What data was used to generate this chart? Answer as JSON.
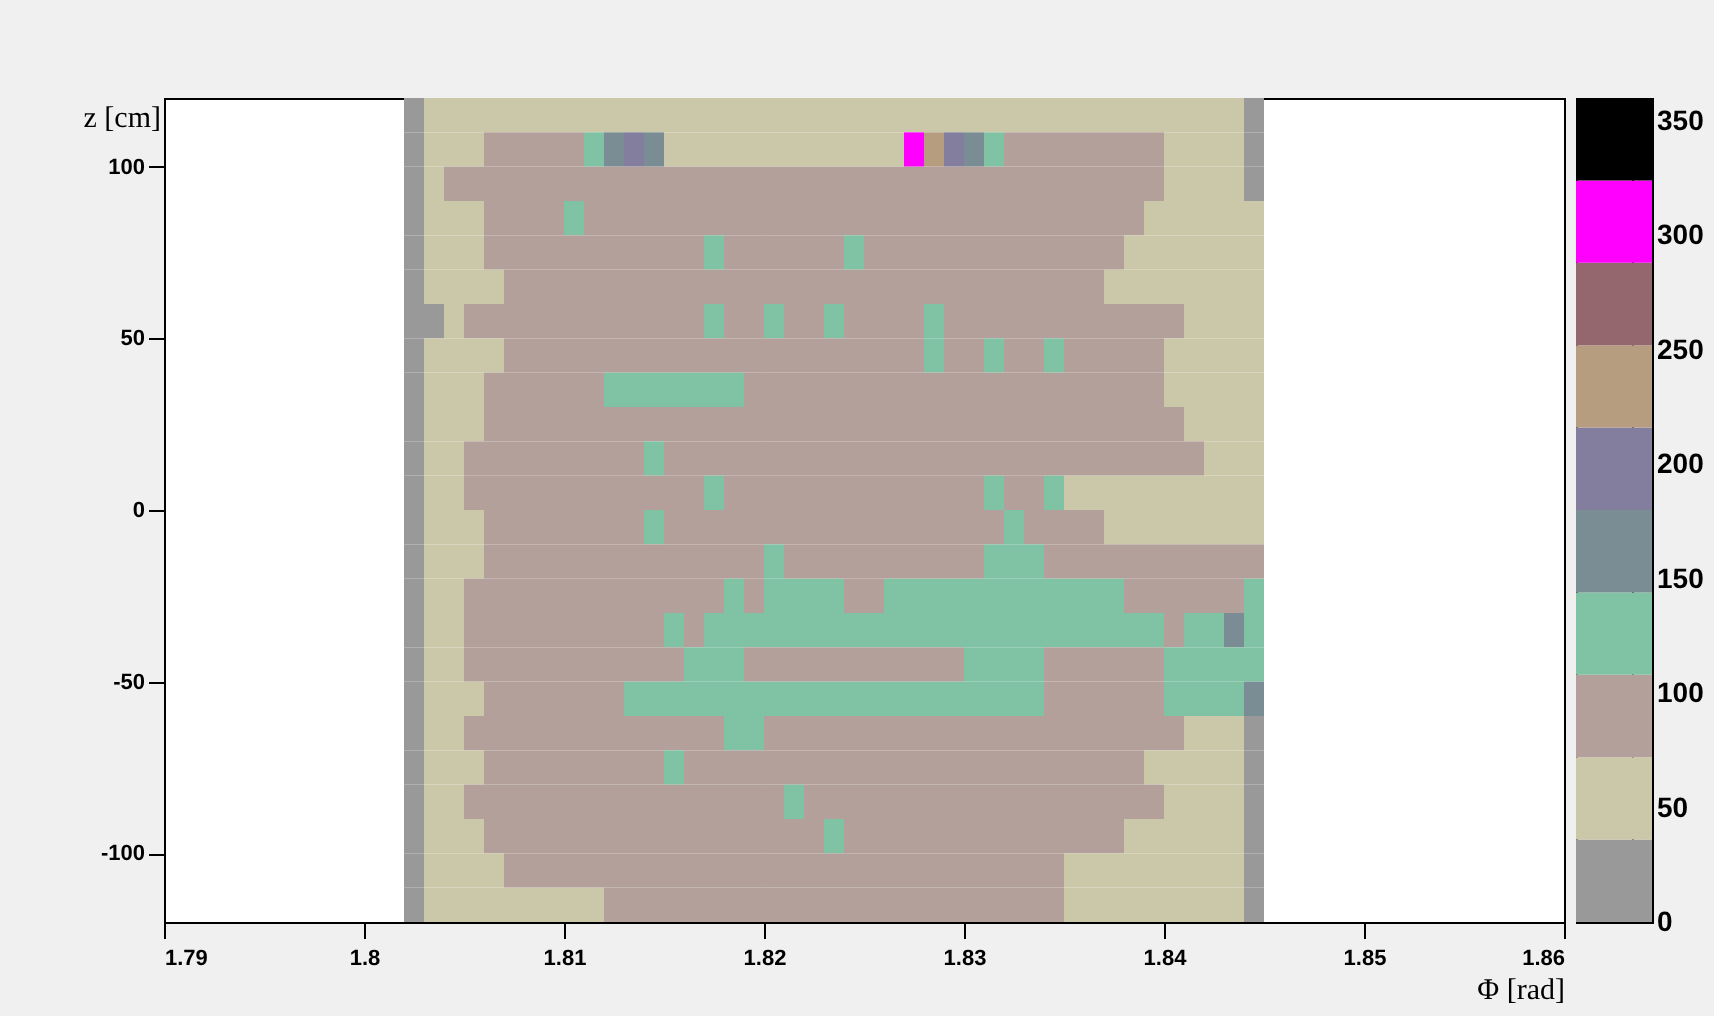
{
  "chart_data": {
    "type": "heatmap",
    "xlabel": "Φ [rad]",
    "ylabel": "z [cm]",
    "x": [
      1.8025,
      1.8035,
      1.8045,
      1.8055,
      1.8065,
      1.8075,
      1.8085,
      1.8095,
      1.8105,
      1.8115,
      1.8125,
      1.8135,
      1.8145,
      1.8155,
      1.8165,
      1.8175,
      1.8185,
      1.8195,
      1.8205,
      1.8215,
      1.8225,
      1.8235,
      1.8245,
      1.8255,
      1.8265,
      1.8275,
      1.8285,
      1.8295,
      1.8305,
      1.8315,
      1.8325,
      1.8335,
      1.8345,
      1.8355,
      1.8365,
      1.8375,
      1.8385,
      1.8395,
      1.8405,
      1.8415,
      1.8425,
      1.8435,
      1.8445
    ],
    "y": [
      115,
      105,
      95,
      85,
      75,
      65,
      55,
      45,
      35,
      25,
      15,
      5,
      -5,
      -15,
      -25,
      -35,
      -45,
      -55,
      -65,
      -75,
      -85,
      -95,
      -105,
      -115
    ],
    "cells": [
      [
        18,
        54,
        54,
        54,
        54,
        54,
        54,
        54,
        54,
        54,
        54,
        54,
        54,
        54,
        54,
        54,
        54,
        54,
        54,
        54,
        54,
        54,
        54,
        54,
        54,
        54,
        54,
        54,
        54,
        54,
        54,
        54,
        54,
        54,
        54,
        54,
        54,
        54,
        54,
        54,
        54,
        54,
        18
      ],
      [
        18,
        54,
        54,
        54,
        90,
        90,
        90,
        90,
        90,
        126,
        162,
        198,
        162,
        54,
        54,
        54,
        54,
        54,
        54,
        54,
        54,
        54,
        54,
        54,
        54,
        306,
        234,
        198,
        162,
        126,
        90,
        90,
        90,
        90,
        90,
        90,
        90,
        90,
        54,
        54,
        54,
        54,
        18
      ],
      [
        18,
        54,
        90,
        90,
        90,
        90,
        90,
        90,
        90,
        90,
        90,
        90,
        90,
        90,
        90,
        90,
        90,
        90,
        90,
        90,
        90,
        90,
        90,
        90,
        90,
        90,
        90,
        90,
        90,
        90,
        90,
        90,
        90,
        90,
        90,
        90,
        90,
        90,
        54,
        54,
        54,
        54,
        18
      ],
      [
        18,
        54,
        54,
        54,
        90,
        90,
        90,
        90,
        126,
        90,
        90,
        90,
        90,
        90,
        90,
        90,
        90,
        90,
        90,
        90,
        90,
        90,
        90,
        90,
        90,
        90,
        90,
        90,
        90,
        90,
        90,
        90,
        90,
        90,
        90,
        90,
        90,
        54,
        54,
        54,
        54,
        54,
        54
      ],
      [
        18,
        54,
        54,
        54,
        90,
        90,
        90,
        90,
        90,
        90,
        90,
        90,
        90,
        90,
        90,
        126,
        90,
        90,
        90,
        90,
        90,
        90,
        126,
        90,
        90,
        90,
        90,
        90,
        90,
        90,
        90,
        90,
        90,
        90,
        90,
        90,
        54,
        54,
        54,
        54,
        54,
        54,
        54
      ],
      [
        18,
        54,
        54,
        54,
        54,
        90,
        90,
        90,
        90,
        90,
        90,
        90,
        90,
        90,
        90,
        90,
        90,
        90,
        90,
        90,
        90,
        90,
        90,
        90,
        90,
        90,
        90,
        90,
        90,
        90,
        90,
        90,
        90,
        90,
        90,
        54,
        54,
        54,
        54,
        54,
        54,
        54,
        54
      ],
      [
        18,
        18,
        54,
        90,
        90,
        90,
        90,
        90,
        90,
        90,
        90,
        90,
        90,
        90,
        90,
        126,
        90,
        90,
        126,
        90,
        90,
        126,
        90,
        90,
        90,
        90,
        126,
        90,
        90,
        90,
        90,
        90,
        90,
        90,
        90,
        90,
        90,
        90,
        90,
        54,
        54,
        54,
        54
      ],
      [
        18,
        54,
        54,
        54,
        54,
        90,
        90,
        90,
        90,
        90,
        90,
        90,
        90,
        90,
        90,
        90,
        90,
        90,
        90,
        90,
        90,
        90,
        90,
        90,
        90,
        90,
        126,
        90,
        90,
        126,
        90,
        90,
        126,
        90,
        90,
        90,
        90,
        90,
        54,
        54,
        54,
        54,
        54
      ],
      [
        18,
        54,
        54,
        54,
        90,
        90,
        90,
        90,
        90,
        90,
        126,
        126,
        126,
        126,
        126,
        126,
        126,
        90,
        90,
        90,
        90,
        90,
        90,
        90,
        90,
        90,
        90,
        90,
        90,
        90,
        90,
        90,
        90,
        90,
        90,
        90,
        90,
        90,
        54,
        54,
        54,
        54,
        54
      ],
      [
        18,
        54,
        54,
        54,
        90,
        90,
        90,
        90,
        90,
        90,
        90,
        90,
        90,
        90,
        90,
        90,
        90,
        90,
        90,
        90,
        90,
        90,
        90,
        90,
        90,
        90,
        90,
        90,
        90,
        90,
        90,
        90,
        90,
        90,
        90,
        90,
        90,
        90,
        90,
        54,
        54,
        54,
        54
      ],
      [
        18,
        54,
        54,
        90,
        90,
        90,
        90,
        90,
        90,
        90,
        90,
        90,
        126,
        90,
        90,
        90,
        90,
        90,
        90,
        90,
        90,
        90,
        90,
        90,
        90,
        90,
        90,
        90,
        90,
        90,
        90,
        90,
        90,
        90,
        90,
        90,
        90,
        90,
        90,
        90,
        54,
        54,
        54
      ],
      [
        18,
        54,
        54,
        90,
        90,
        90,
        90,
        90,
        90,
        90,
        90,
        90,
        90,
        90,
        90,
        126,
        90,
        90,
        90,
        90,
        90,
        90,
        90,
        90,
        90,
        90,
        90,
        90,
        90,
        126,
        90,
        90,
        126,
        54,
        54,
        54,
        54,
        54,
        54,
        54,
        54,
        54,
        54
      ],
      [
        18,
        54,
        54,
        54,
        90,
        90,
        90,
        90,
        90,
        90,
        90,
        90,
        126,
        90,
        90,
        90,
        90,
        90,
        90,
        90,
        90,
        90,
        90,
        90,
        90,
        90,
        90,
        90,
        90,
        90,
        126,
        90,
        90,
        90,
        90,
        54,
        54,
        54,
        54,
        54,
        54,
        54,
        54
      ],
      [
        18,
        54,
        54,
        54,
        90,
        90,
        90,
        90,
        90,
        90,
        90,
        90,
        90,
        90,
        90,
        90,
        90,
        90,
        126,
        90,
        90,
        90,
        90,
        90,
        90,
        90,
        90,
        90,
        90,
        126,
        126,
        126,
        90,
        90,
        90,
        90,
        90,
        90,
        90,
        90,
        90,
        90,
        90
      ],
      [
        18,
        54,
        54,
        90,
        90,
        90,
        90,
        90,
        90,
        90,
        90,
        90,
        90,
        90,
        90,
        90,
        126,
        90,
        126,
        126,
        126,
        126,
        90,
        90,
        126,
        126,
        126,
        126,
        126,
        126,
        126,
        126,
        126,
        126,
        126,
        126,
        90,
        90,
        90,
        90,
        90,
        90,
        126
      ],
      [
        18,
        54,
        54,
        90,
        90,
        90,
        90,
        90,
        90,
        90,
        90,
        90,
        90,
        126,
        90,
        126,
        126,
        126,
        126,
        126,
        126,
        126,
        126,
        126,
        126,
        126,
        126,
        126,
        126,
        126,
        126,
        126,
        126,
        126,
        126,
        126,
        126,
        126,
        90,
        126,
        126,
        162,
        126
      ],
      [
        18,
        54,
        54,
        90,
        90,
        90,
        90,
        90,
        90,
        90,
        90,
        90,
        90,
        90,
        126,
        126,
        126,
        90,
        90,
        90,
        90,
        90,
        90,
        90,
        90,
        90,
        90,
        90,
        126,
        126,
        126,
        126,
        90,
        90,
        90,
        90,
        90,
        90,
        126,
        126,
        126,
        126,
        126
      ],
      [
        18,
        54,
        54,
        54,
        90,
        90,
        90,
        90,
        90,
        90,
        90,
        126,
        126,
        126,
        126,
        126,
        126,
        126,
        126,
        126,
        126,
        126,
        126,
        126,
        126,
        126,
        126,
        126,
        126,
        126,
        126,
        126,
        90,
        90,
        90,
        90,
        90,
        90,
        126,
        126,
        126,
        126,
        162
      ],
      [
        18,
        54,
        54,
        90,
        90,
        90,
        90,
        90,
        90,
        90,
        90,
        90,
        90,
        90,
        90,
        90,
        126,
        126,
        90,
        90,
        90,
        90,
        90,
        90,
        90,
        90,
        90,
        90,
        90,
        90,
        90,
        90,
        90,
        90,
        90,
        90,
        90,
        90,
        90,
        54,
        54,
        54,
        18
      ],
      [
        18,
        54,
        54,
        54,
        90,
        90,
        90,
        90,
        90,
        90,
        90,
        90,
        90,
        126,
        90,
        90,
        90,
        90,
        90,
        90,
        90,
        90,
        90,
        90,
        90,
        90,
        90,
        90,
        90,
        90,
        90,
        90,
        90,
        90,
        90,
        90,
        90,
        54,
        54,
        54,
        54,
        54,
        18
      ],
      [
        18,
        54,
        54,
        90,
        90,
        90,
        90,
        90,
        90,
        90,
        90,
        90,
        90,
        90,
        90,
        90,
        90,
        90,
        90,
        126,
        90,
        90,
        90,
        90,
        90,
        90,
        90,
        90,
        90,
        90,
        90,
        90,
        90,
        90,
        90,
        90,
        90,
        90,
        54,
        54,
        54,
        54,
        18
      ],
      [
        18,
        54,
        54,
        54,
        90,
        90,
        90,
        90,
        90,
        90,
        90,
        90,
        90,
        90,
        90,
        90,
        90,
        90,
        90,
        90,
        90,
        126,
        90,
        90,
        90,
        90,
        90,
        90,
        90,
        90,
        90,
        90,
        90,
        90,
        90,
        90,
        54,
        54,
        54,
        54,
        54,
        54,
        18
      ],
      [
        18,
        54,
        54,
        54,
        54,
        90,
        90,
        90,
        90,
        90,
        90,
        90,
        90,
        90,
        90,
        90,
        90,
        90,
        90,
        90,
        90,
        90,
        90,
        90,
        90,
        90,
        90,
        90,
        90,
        90,
        90,
        90,
        90,
        54,
        54,
        54,
        54,
        54,
        54,
        54,
        54,
        54,
        18
      ],
      [
        18,
        54,
        54,
        54,
        54,
        54,
        54,
        54,
        54,
        54,
        90,
        90,
        90,
        90,
        90,
        90,
        90,
        90,
        90,
        90,
        90,
        90,
        90,
        90,
        90,
        90,
        90,
        90,
        90,
        90,
        90,
        90,
        90,
        54,
        54,
        54,
        54,
        54,
        54,
        54,
        54,
        54,
        18
      ]
    ],
    "colors": [
      "#999999",
      "#cbc8aa",
      "#b4a09b",
      "#80c2a4",
      "#7a8d94",
      "#837d9e",
      "#b79d80",
      "#94676e",
      "#ff00ff",
      "#000000"
    ],
    "clim": [
      0,
      360
    ],
    "cticks": [
      0,
      50,
      100,
      150,
      200,
      250,
      300,
      350
    ],
    "xlim": [
      1.79,
      1.86
    ],
    "xticks": [
      1.79,
      1.8,
      1.81,
      1.82,
      1.83,
      1.84,
      1.85,
      1.86
    ],
    "ylim": [
      -120,
      120
    ],
    "yticks": [
      -100,
      -50,
      0,
      50,
      100
    ]
  }
}
